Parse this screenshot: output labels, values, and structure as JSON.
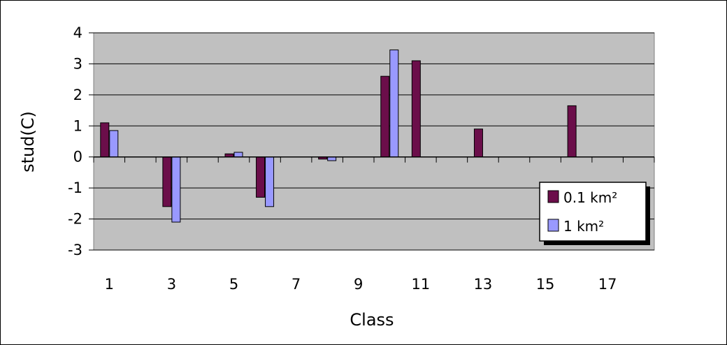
{
  "chart_data": {
    "type": "bar",
    "title": "",
    "xlabel": "Class",
    "ylabel": "stud(C)",
    "ylim": [
      -3,
      4
    ],
    "yticks": [
      "4",
      "3",
      "2",
      "1",
      "0",
      "-1",
      "-2",
      "-3"
    ],
    "xtick_labels": [
      "1",
      "3",
      "5",
      "7",
      "9",
      "11",
      "13",
      "15",
      "17"
    ],
    "grid": true,
    "legend_position": "right",
    "categories": [
      "1",
      "2",
      "3",
      "4",
      "5",
      "6",
      "7",
      "8",
      "9",
      "10",
      "11",
      "12",
      "13",
      "14",
      "15",
      "16",
      "17",
      "18"
    ],
    "series": [
      {
        "name": "0.1 km²",
        "color": "#6b0e4a",
        "values": [
          1.1,
          0,
          -1.6,
          0,
          0.1,
          -1.3,
          0,
          -0.07,
          0,
          2.6,
          3.1,
          0,
          0.9,
          0,
          0,
          1.65,
          0,
          0
        ]
      },
      {
        "name": "1 km²",
        "color": "#9999ff",
        "values": [
          0.85,
          0,
          -2.1,
          0,
          0.15,
          -1.6,
          0,
          -0.12,
          0,
          3.45,
          0,
          0,
          0,
          0,
          0,
          0,
          0,
          0
        ]
      }
    ],
    "plot_background": "#c0c0c0"
  }
}
